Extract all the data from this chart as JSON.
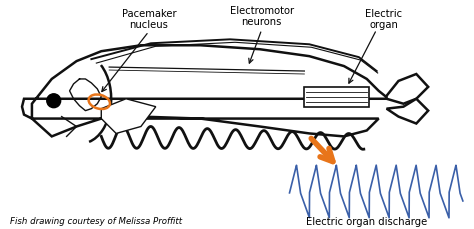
{
  "bg_color": "#ffffff",
  "labels": {
    "pacemaker": "Pacemaker\nnucleus",
    "electromotor": "Electromotor\nneurons",
    "electric_organ": "Electric\norgan",
    "discharge": "Electric organ discharge",
    "credit": "Fish drawing courtesy of Melissa Proffitt"
  },
  "arrow_color": "#e8751a",
  "wave_color": "#3a5fa8",
  "line_color": "#111111",
  "font_size_labels": 7.2,
  "font_size_credit": 6.2
}
